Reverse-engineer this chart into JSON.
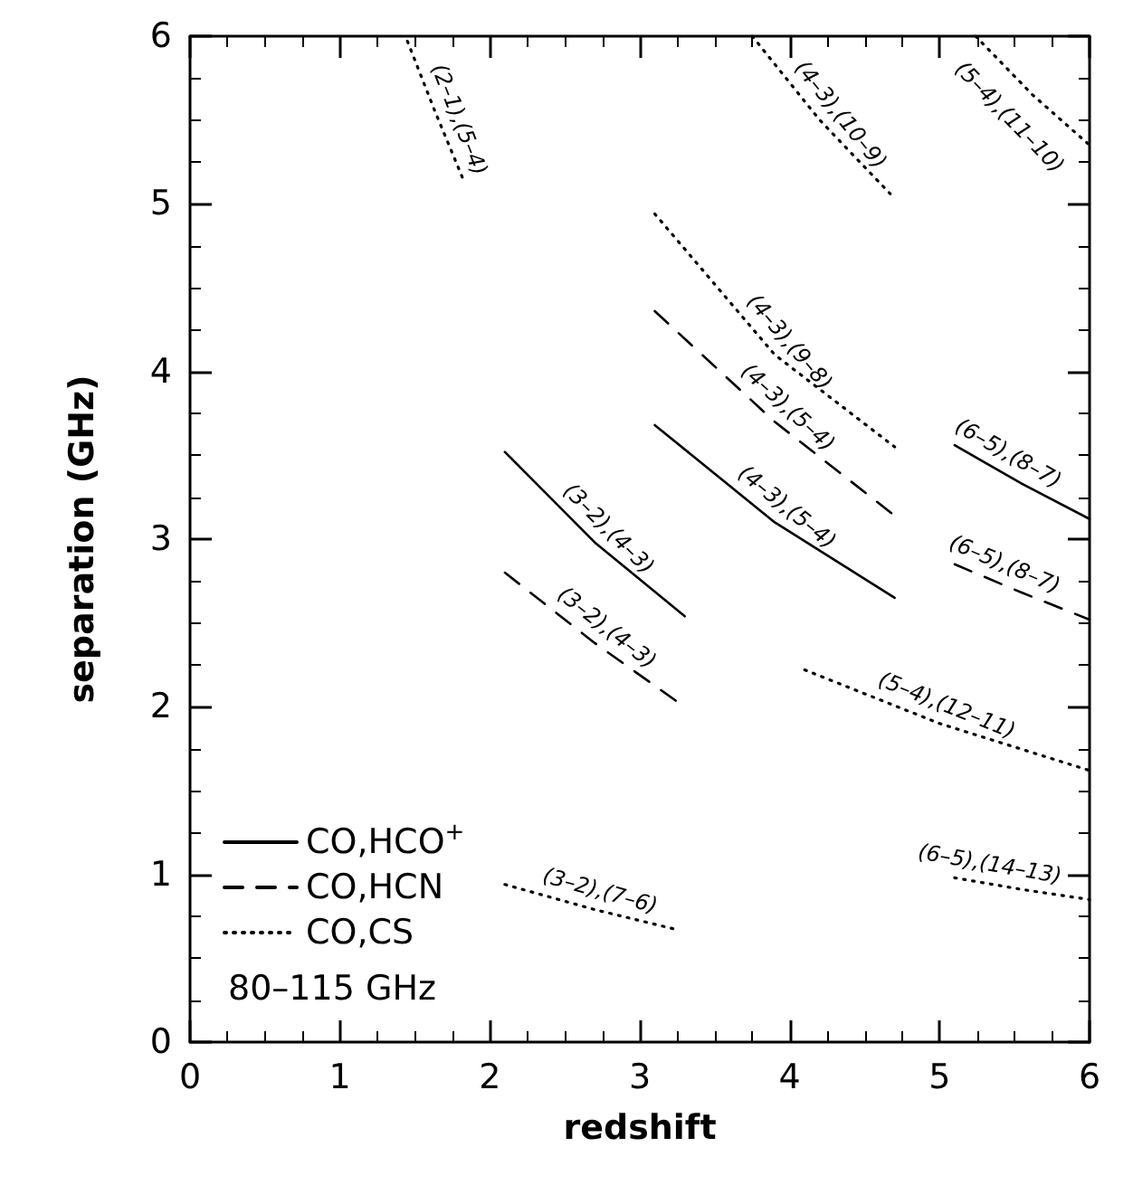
{
  "chart_data": {
    "type": "line",
    "xlabel": "redshift",
    "ylabel": "separation (GHz)",
    "xlim": [
      0,
      6
    ],
    "ylim": [
      0,
      6
    ],
    "xticks": [
      0,
      1,
      2,
      3,
      4,
      5,
      6
    ],
    "yticks": [
      0,
      1,
      2,
      3,
      4,
      5,
      6
    ],
    "grid": false,
    "legend": "bottom left",
    "marker": "none",
    "series": [
      {
        "name": "CO,HCO$^{+}$",
        "color": "#000000",
        "line_style": "solid",
        "x": [
          2.1,
          2.7,
          3.3
        ],
        "values": [
          3.52,
          2.98,
          2.54
        ]
      },
      {
        "color": "#000000",
        "line_style": "solid",
        "x": [
          3.1,
          3.9,
          4.7
        ],
        "values": [
          3.68,
          3.1,
          2.65
        ]
      },
      {
        "color": "#000000",
        "line_style": "solid",
        "x": [
          5.1,
          5.55,
          6.0
        ],
        "values": [
          3.56,
          3.33,
          3.12
        ]
      },
      {
        "name": "CO,HCN",
        "color": "#000000",
        "line_style": "dashed",
        "x": [
          2.1,
          2.7,
          3.25
        ],
        "values": [
          2.8,
          2.38,
          2.03
        ]
      },
      {
        "color": "#000000",
        "line_style": "dashed",
        "x": [
          3.1,
          3.9,
          4.7
        ],
        "values": [
          4.36,
          3.7,
          3.14
        ]
      },
      {
        "color": "#000000",
        "line_style": "dashed",
        "x": [
          5.1,
          5.55,
          6.0
        ],
        "values": [
          2.85,
          2.68,
          2.52
        ]
      },
      {
        "name": "CO,CS",
        "color": "#000000",
        "line_style": "dotted",
        "x": [
          1.45,
          1.63,
          1.82
        ],
        "values": [
          5.97,
          5.56,
          5.15
        ]
      },
      {
        "color": "#000000",
        "line_style": "dotted",
        "x": [
          3.75,
          4.2,
          4.67
        ],
        "values": [
          6.0,
          5.5,
          5.06
        ]
      },
      {
        "color": "#000000",
        "line_style": "dotted",
        "x": [
          5.24,
          5.62,
          6.0
        ],
        "values": [
          6.0,
          5.65,
          5.35
        ]
      },
      {
        "color": "#000000",
        "line_style": "dotted",
        "x": [
          3.1,
          3.9,
          4.7
        ],
        "values": [
          4.94,
          4.1,
          3.55
        ]
      },
      {
        "color": "#000000",
        "line_style": "dotted",
        "x": [
          4.1,
          5.0,
          6.0
        ],
        "values": [
          2.22,
          1.9,
          1.62
        ]
      },
      {
        "color": "#000000",
        "line_style": "dotted",
        "x": [
          2.1,
          2.7,
          3.25
        ],
        "values": [
          0.94,
          0.79,
          0.67
        ]
      },
      {
        "color": "#000000",
        "line_style": "dotted",
        "x": [
          5.1,
          5.55,
          6.0
        ],
        "values": [
          0.98,
          0.91,
          0.85
        ]
      }
    ],
    "annotations": [
      {
        "text": "(3–2),(4–3)",
        "x": 2.7,
        "y": 2.98
      },
      {
        "text": "(4–3),(5–4)",
        "x": 3.9,
        "y": 3.1
      },
      {
        "text": "(6–5),(8–7)",
        "x": 5.55,
        "y": 3.33
      },
      {
        "text": "(3–2),(4–3)",
        "x": 2.7,
        "y": 2.38
      },
      {
        "text": "(4–3),(5–4)",
        "x": 3.9,
        "y": 3.7
      },
      {
        "text": "(6–5),(8–7)",
        "x": 5.55,
        "y": 2.68
      },
      {
        "text": "(2–1),(5–4)",
        "x": 1.63,
        "y": 5.56
      },
      {
        "text": "(4–3),(10–9)",
        "x": 4.2,
        "y": 5.5
      },
      {
        "text": "(5–4),(11–10)",
        "x": 5.62,
        "y": 5.65
      },
      {
        "text": "(4–3),(9–8)",
        "x": 3.9,
        "y": 4.1
      },
      {
        "text": "(5–4),(12–11)",
        "x": 5.0,
        "y": 1.9
      },
      {
        "text": "(3–2),(7–6)",
        "x": 2.7,
        "y": 0.79
      },
      {
        "text": "(6–5),(14–13)",
        "x": 5.55,
        "y": 0.91
      },
      "80–115 GHz"
    ]
  }
}
